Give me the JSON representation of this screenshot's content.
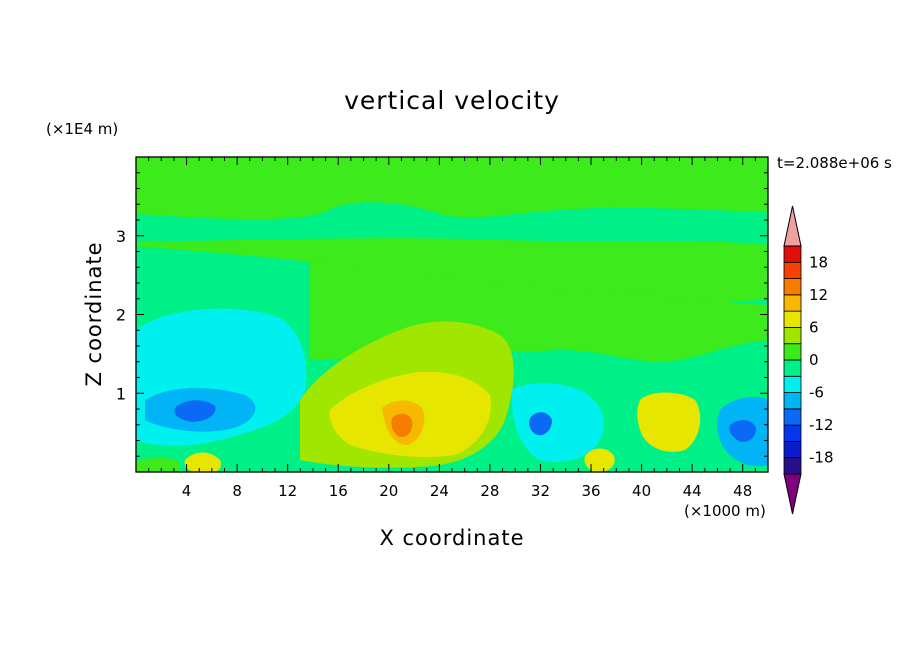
{
  "chart_data": {
    "type": "heatmap",
    "title": "vertical velocity",
    "xlabel": "X coordinate",
    "ylabel": "Z coordinate",
    "x_unit": "(×1000 m)",
    "y_unit": "(×1E4 m)",
    "time_label": "t=2.088e+06 s",
    "xlim": [
      0,
      50
    ],
    "ylim": [
      0,
      4
    ],
    "x_ticks": [
      "4",
      "8",
      "12",
      "16",
      "20",
      "24",
      "28",
      "32",
      "36",
      "40",
      "44",
      "48"
    ],
    "y_ticks": [
      "1",
      "2",
      "3"
    ],
    "colorbar": {
      "levels": [
        -21,
        -18,
        -15,
        -12,
        -9,
        -6,
        -3,
        0,
        3,
        6,
        9,
        12,
        15,
        18,
        21
      ],
      "tick_labels": [
        "18",
        "12",
        "6",
        "0",
        "-6",
        "-12",
        "-18"
      ],
      "tick_values": [
        18,
        12,
        6,
        0,
        -6,
        -12,
        -18
      ],
      "colors": [
        "#80007f",
        "#2a0f8c",
        "#0a1acc",
        "#0535ee",
        "#0a6af5",
        "#00b4f5",
        "#00f0f0",
        "#00f088",
        "#3dea1c",
        "#a0e600",
        "#e6e600",
        "#f7b800",
        "#f77d00",
        "#f74100",
        "#e10f0a",
        "#f0a0a0"
      ]
    },
    "features": [
      {
        "x": 5,
        "z": 0.12,
        "value": 6
      },
      {
        "x": 21,
        "z": 0.5,
        "value": 12
      },
      {
        "x": 25,
        "z": 1.0,
        "value": 6
      },
      {
        "x": 4,
        "z": 0.7,
        "value": -12
      },
      {
        "x": 31.5,
        "z": 0.55,
        "value": -12
      },
      {
        "x": 36.5,
        "z": 0.12,
        "value": 6
      },
      {
        "x": 43,
        "z": 0.6,
        "value": 6
      },
      {
        "x": 47.5,
        "z": 0.5,
        "value": -12
      }
    ]
  }
}
